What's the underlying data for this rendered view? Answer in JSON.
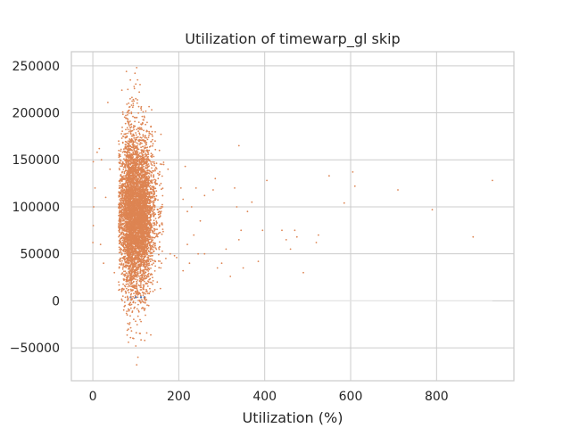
{
  "chart_data": {
    "type": "scatter",
    "title": "Utilization of timewarp_gl skip",
    "xlabel": "Utilization (%)",
    "ylabel": "",
    "xlim": [
      -50,
      980
    ],
    "ylim": [
      -85000,
      265000
    ],
    "xticks": [
      0,
      200,
      400,
      600,
      800
    ],
    "yticks": [
      -50000,
      0,
      50000,
      100000,
      150000,
      200000,
      250000
    ],
    "xtick_labels": [
      "0",
      "200",
      "400",
      "600",
      "800"
    ],
    "ytick_labels": [
      "−50000",
      "0",
      "50000",
      "100000",
      "150000",
      "200000",
      "250000"
    ],
    "grid": true,
    "colors": {
      "points": "#dd8452",
      "baseline": "#4c72b0",
      "grid": "#cccccc",
      "background": "#ffffff",
      "text": "#262626"
    },
    "series": [
      {
        "role": "main-cluster",
        "cluster": [
          {
            "x_center": 88,
            "x_spread": 10,
            "y_center": 95000,
            "y_spread": 45000,
            "count": 2200
          },
          {
            "x_center": 115,
            "x_spread": 12,
            "y_center": 90000,
            "y_spread": 40000,
            "count": 2200
          },
          {
            "x_center": 100,
            "x_spread": 30,
            "y_center": 95000,
            "y_spread": 30000,
            "count": 1400
          }
        ],
        "points": [
          [
            102,
            248000
          ],
          [
            98,
            242000
          ],
          [
            104,
            235000
          ],
          [
            96,
            228000
          ],
          [
            108,
            222000
          ],
          [
            100,
            215000
          ],
          [
            94,
            210000
          ],
          [
            112,
            205000
          ],
          [
            35,
            211000
          ],
          [
            120,
            195000
          ],
          [
            90,
            188000
          ],
          [
            125,
            180000
          ],
          [
            15,
            162000
          ],
          [
            10,
            158000
          ],
          [
            20,
            150000
          ],
          [
            5,
            120000
          ],
          [
            30,
            110000
          ],
          [
            40,
            140000
          ],
          [
            18,
            60000
          ],
          [
            25,
            40000
          ],
          [
            50,
            30000
          ],
          [
            60,
            20000
          ],
          [
            70,
            5000
          ],
          [
            75,
            -5000
          ],
          [
            80,
            -15000
          ],
          [
            85,
            -25000
          ],
          [
            90,
            -32000
          ],
          [
            95,
            -40000
          ],
          [
            100,
            -48000
          ],
          [
            105,
            -60000
          ],
          [
            102,
            -68000
          ],
          [
            110,
            -20000
          ],
          [
            120,
            -10000
          ],
          [
            130,
            -5000
          ],
          [
            140,
            10000
          ],
          [
            150,
            20000
          ],
          [
            160,
            40000
          ],
          [
            170,
            45000
          ],
          [
            180,
            50000
          ],
          [
            190,
            48000
          ],
          [
            195,
            46000
          ],
          [
            165,
            145000
          ],
          [
            175,
            140000
          ],
          [
            155,
            160000
          ],
          [
            145,
            170000
          ],
          [
            135,
            185000
          ],
          [
            60,
            170000
          ],
          [
            70,
            175000
          ],
          [
            80,
            200000
          ],
          [
            110,
            230000
          ],
          [
            1,
            148000
          ],
          [
            2,
            100000
          ],
          [
            1,
            80000
          ],
          [
            0,
            62000
          ]
        ]
      },
      {
        "role": "outliers",
        "points": [
          [
            215,
            143000
          ],
          [
            205,
            120000
          ],
          [
            210,
            108000
          ],
          [
            220,
            95000
          ],
          [
            230,
            100000
          ],
          [
            240,
            120000
          ],
          [
            250,
            85000
          ],
          [
            260,
            112000
          ],
          [
            235,
            70000
          ],
          [
            220,
            60000
          ],
          [
            245,
            50000
          ],
          [
            225,
            40000
          ],
          [
            210,
            32000
          ],
          [
            260,
            50000
          ],
          [
            280,
            118000
          ],
          [
            285,
            130000
          ],
          [
            290,
            35000
          ],
          [
            300,
            40000
          ],
          [
            310,
            55000
          ],
          [
            320,
            26000
          ],
          [
            330,
            120000
          ],
          [
            335,
            100000
          ],
          [
            340,
            165000
          ],
          [
            340,
            65000
          ],
          [
            345,
            75000
          ],
          [
            350,
            35000
          ],
          [
            360,
            95000
          ],
          [
            370,
            105000
          ],
          [
            385,
            42000
          ],
          [
            395,
            75000
          ],
          [
            405,
            128000
          ],
          [
            440,
            75000
          ],
          [
            450,
            65000
          ],
          [
            460,
            55000
          ],
          [
            470,
            75000
          ],
          [
            475,
            68000
          ],
          [
            490,
            30000
          ],
          [
            520,
            62000
          ],
          [
            525,
            70000
          ],
          [
            550,
            133000
          ],
          [
            585,
            104000
          ],
          [
            605,
            137000
          ],
          [
            610,
            122000
          ],
          [
            710,
            118000
          ],
          [
            790,
            97000
          ],
          [
            885,
            68000
          ],
          [
            930,
            128000
          ]
        ]
      },
      {
        "role": "baseline",
        "x_range": [
          0,
          930
        ],
        "y": 0
      }
    ]
  }
}
